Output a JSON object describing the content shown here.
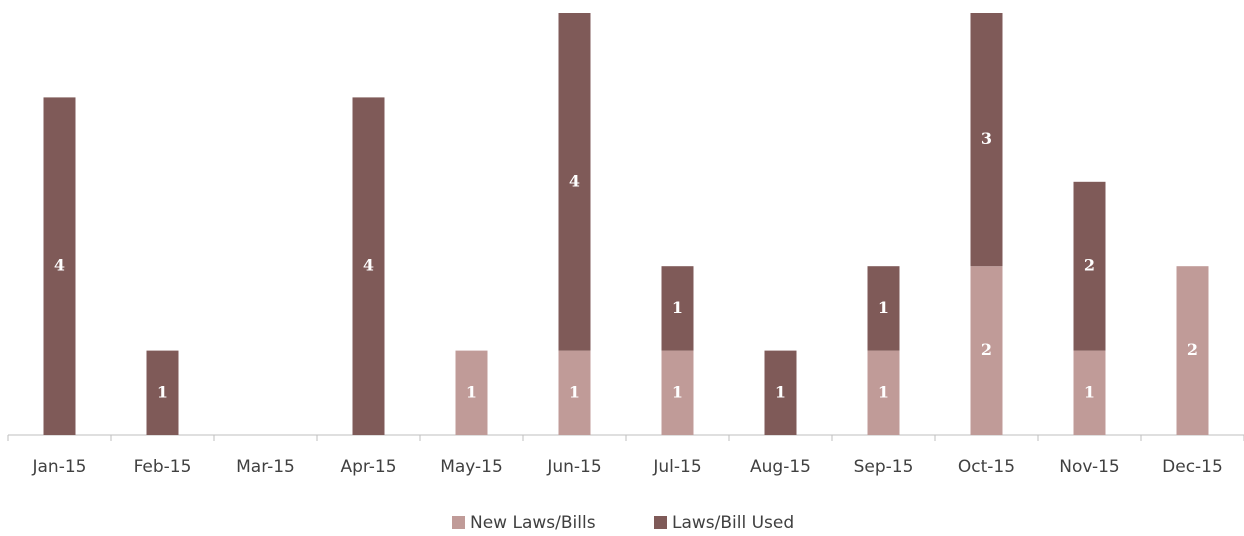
{
  "chart_data": {
    "type": "stacked_bar",
    "categories": [
      "Jan-15",
      "Feb-15",
      "Mar-15",
      "Apr-15",
      "May-15",
      "Jun-15",
      "Jul-15",
      "Aug-15",
      "Sep-15",
      "Oct-15",
      "Nov-15",
      "Dec-15"
    ],
    "series": [
      {
        "name": "New Laws/Bills",
        "color": "#c09b98",
        "values": [
          null,
          null,
          null,
          null,
          1,
          1,
          1,
          null,
          1,
          2,
          1,
          2
        ]
      },
      {
        "name": "Laws/Bill Used",
        "color": "#7f5a58",
        "values": [
          4,
          1,
          null,
          4,
          null,
          4,
          1,
          1,
          1,
          3,
          2,
          null
        ]
      }
    ],
    "ylim": [
      0,
      5
    ],
    "legend": "bottom"
  }
}
